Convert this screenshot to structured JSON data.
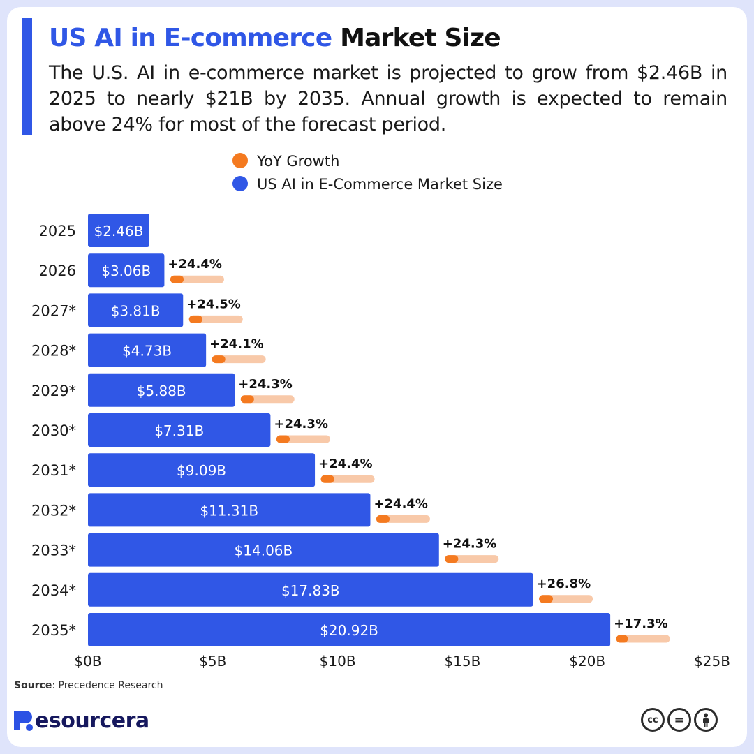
{
  "header": {
    "title_highlight": "US AI in E-commerce",
    "title_rest": "Market Size",
    "subtitle": "The U.S. AI in e-commerce market is projected to grow from $2.46B in 2025 to nearly $21B by 2035. Annual growth is expected to remain above 24% for most of the forecast period."
  },
  "chart_data": {
    "type": "bar",
    "orientation": "horizontal",
    "categories": [
      "2025",
      "2026",
      "2027*",
      "2028*",
      "2029*",
      "2030*",
      "2031*",
      "2032*",
      "2033*",
      "2034*",
      "2035*"
    ],
    "series": [
      {
        "name": "US AI in E-Commerce Market Size",
        "values": [
          2.46,
          3.06,
          3.81,
          4.73,
          5.88,
          7.31,
          9.09,
          11.31,
          14.06,
          17.83,
          20.92
        ],
        "labels": [
          "$2.46B",
          "$3.06B",
          "$3.81B",
          "$4.73B",
          "$5.88B",
          "$7.31B",
          "$9.09B",
          "$11.31B",
          "$14.06B",
          "$17.83B",
          "$20.92B"
        ],
        "color": "#3057e6"
      },
      {
        "name": "YoY Growth",
        "values": [
          null,
          24.4,
          24.5,
          24.1,
          24.3,
          24.3,
          24.4,
          24.4,
          24.3,
          26.8,
          17.3
        ],
        "labels": [
          "",
          "+24.4%",
          "+24.5%",
          "+24.1%",
          "+24.3%",
          "+24.3%",
          "+24.4%",
          "+24.4%",
          "+24.3%",
          "+26.8%",
          "+17.3%"
        ],
        "color": "#f47a20",
        "track_color": "#f8c9a9"
      }
    ],
    "legend": [
      {
        "label": "YoY Growth",
        "color": "#f47a20"
      },
      {
        "label": "US AI in E-Commerce Market Size",
        "color": "#3057e6"
      }
    ],
    "legend_position": "top-center",
    "xlim": [
      0,
      25
    ],
    "x_ticks": [
      0,
      5,
      10,
      15,
      20,
      25
    ],
    "x_tick_labels": [
      "$0B",
      "$5B",
      "$10B",
      "$15B",
      "$20B",
      "$25B"
    ],
    "grid": false
  },
  "footer": {
    "source_label": "Source",
    "source_text": ": Precedence Research",
    "brand_name": "esourcera",
    "license_badges": [
      "cc",
      "=",
      "by"
    ]
  }
}
